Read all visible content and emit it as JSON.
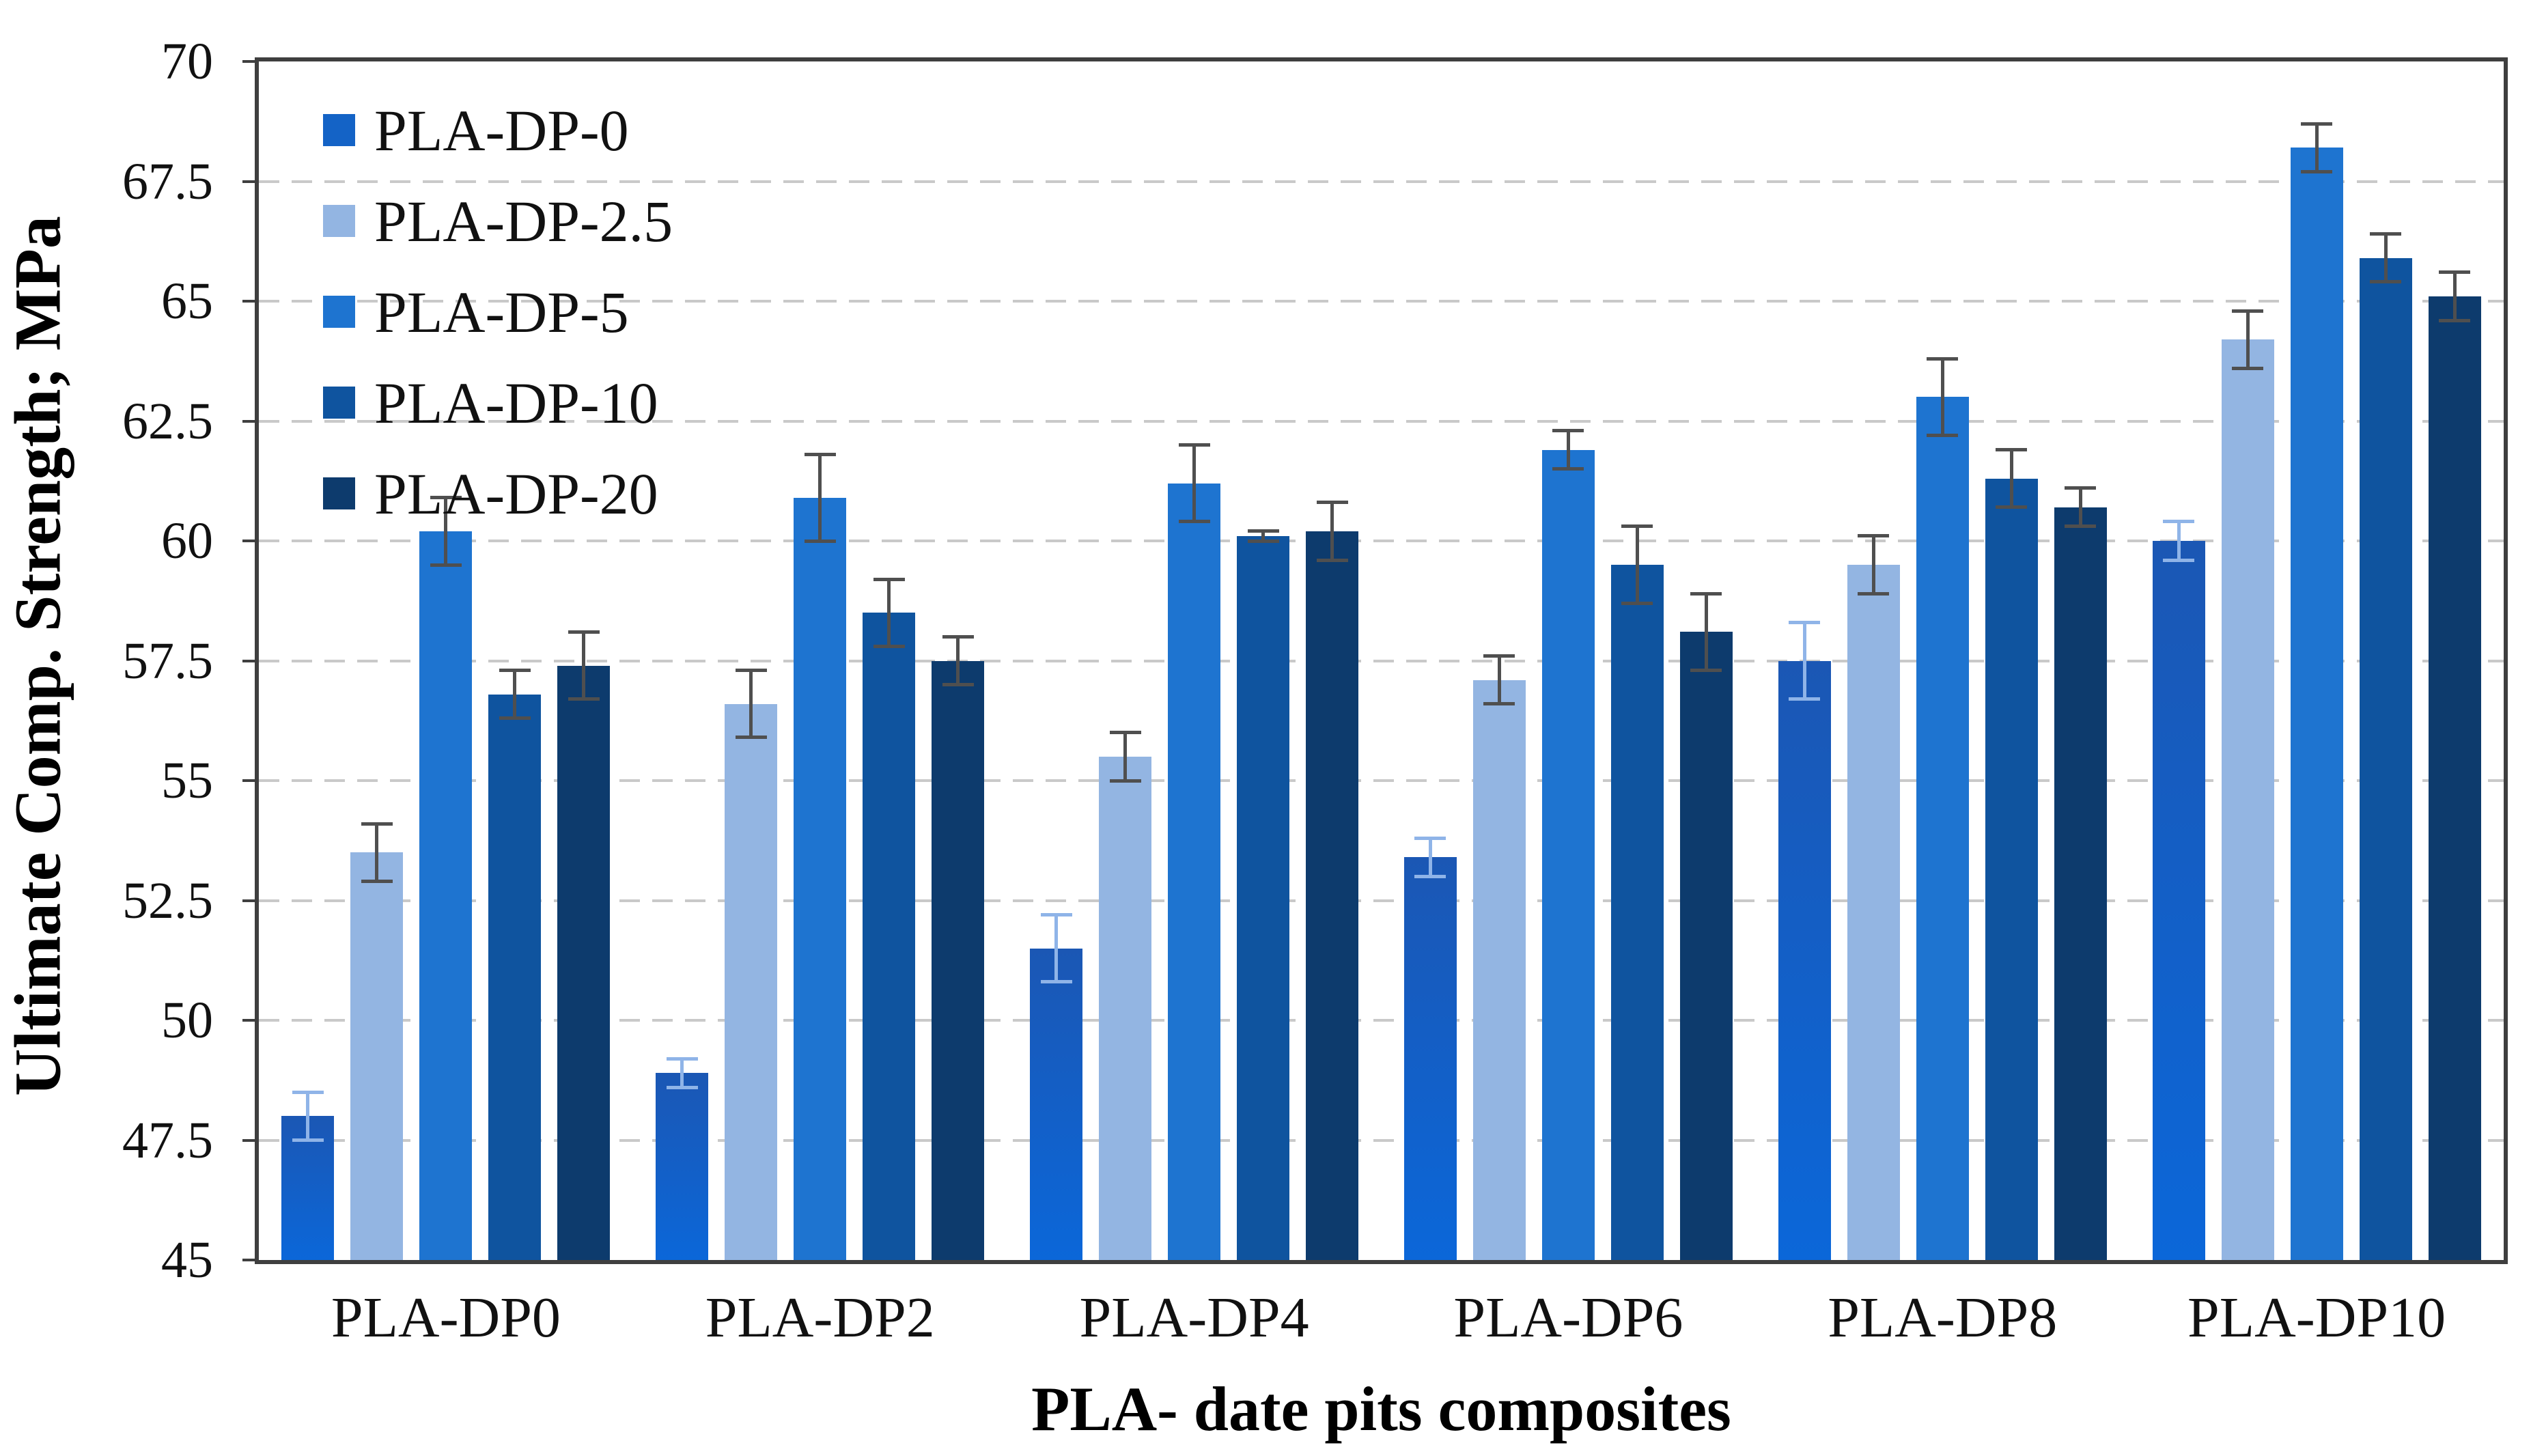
{
  "chart_data": {
    "type": "bar",
    "title": "",
    "xlabel": "PLA- date pits composites",
    "ylabel": "Ultimate Comp. Strength; MPa",
    "categories": [
      "PLA-DP0",
      "PLA-DP2",
      "PLA-DP4",
      "PLA-DP6",
      "PLA-DP8",
      "PLA-DP10"
    ],
    "ylim": [
      45,
      70
    ],
    "ytick_step": 2.5,
    "ytick_labels": [
      "45",
      "47.5",
      "50",
      "52.5",
      "55",
      "57.5",
      "60",
      "62.5",
      "65",
      "67.5",
      "70"
    ],
    "grid": "horizontal-dashed",
    "legend_position": "top-left-inside",
    "series": [
      {
        "name": "PLA-DP-0",
        "color": "#1463c6",
        "color_top": "#1b57b4",
        "color_bottom": "#0b67d9",
        "err_color": "#8fb4e8",
        "values": [
          48.0,
          48.9,
          51.5,
          53.4,
          57.5,
          60.0
        ],
        "errors": [
          0.5,
          0.3,
          0.7,
          0.4,
          0.8,
          0.4
        ]
      },
      {
        "name": "PLA-DP-2.5",
        "color": "#93b5e2",
        "err_color": "#4f4f4f",
        "values": [
          53.5,
          56.6,
          55.5,
          57.1,
          59.5,
          64.2
        ],
        "errors": [
          0.6,
          0.7,
          0.5,
          0.5,
          0.6,
          0.6
        ]
      },
      {
        "name": "PLA-DP-5",
        "color": "#1e74d0",
        "err_color": "#4f4f4f",
        "values": [
          60.2,
          60.9,
          61.2,
          61.9,
          63.0,
          68.2
        ],
        "errors": [
          0.7,
          0.9,
          0.8,
          0.4,
          0.8,
          0.5
        ]
      },
      {
        "name": "PLA-DP-10",
        "color": "#0f549f",
        "err_color": "#4f4f4f",
        "values": [
          56.8,
          58.5,
          60.1,
          59.5,
          61.3,
          65.9
        ],
        "errors": [
          0.5,
          0.7,
          0.1,
          0.8,
          0.6,
          0.5
        ]
      },
      {
        "name": "PLA-DP-20",
        "color": "#0d3b6d",
        "err_color": "#4f4f4f",
        "values": [
          57.4,
          57.5,
          60.2,
          58.1,
          60.7,
          65.1
        ],
        "errors": [
          0.7,
          0.5,
          0.6,
          0.8,
          0.4,
          0.5
        ]
      }
    ]
  },
  "colors": {
    "background": "#ffffff",
    "grid": "#c9c9c9",
    "axis": "#3f3f3f",
    "text": "#111111"
  }
}
